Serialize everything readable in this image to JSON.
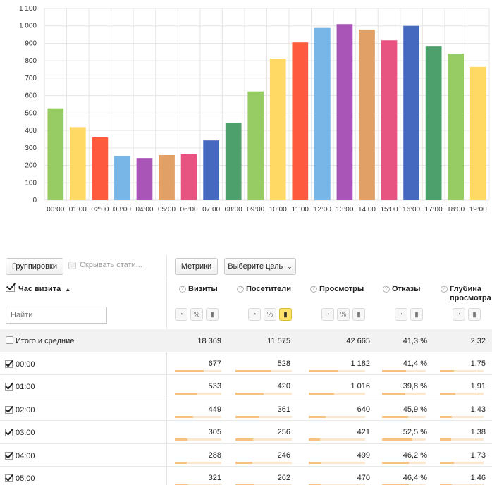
{
  "chart_data": {
    "type": "bar",
    "categories": [
      "00:00",
      "01:00",
      "02:00",
      "03:00",
      "04:00",
      "05:00",
      "06:00",
      "07:00",
      "08:00",
      "09:00",
      "10:00",
      "11:00",
      "12:00",
      "13:00",
      "14:00",
      "15:00",
      "16:00",
      "17:00",
      "18:00",
      "19:00"
    ],
    "values": [
      527,
      419,
      360,
      253,
      242,
      259,
      265,
      343,
      444,
      624,
      813,
      905,
      988,
      1010,
      979,
      917,
      1000,
      885,
      841,
      765
    ],
    "colors": [
      "#97cc64",
      "#ffd963",
      "#fd5a3e",
      "#77b6e7",
      "#a955b8",
      "#e0a066",
      "#e75482",
      "#4469bf",
      "#4da06b",
      "#97cc64",
      "#ffd963",
      "#fd5a3e",
      "#77b6e7",
      "#a955b8",
      "#e0a066",
      "#e75482",
      "#4469bf",
      "#4da06b",
      "#97cc64",
      "#ffd963"
    ],
    "yticks": [
      "0",
      "100",
      "200",
      "300",
      "400",
      "500",
      "600",
      "700",
      "800",
      "900",
      "1 000",
      "1 100"
    ],
    "ylim": [
      0,
      1100
    ],
    "grid": true
  },
  "toolbar": {
    "groupings_label": "Группировки",
    "hide_stats_label": "Скрывать стати...",
    "metrics_label": "Метрики",
    "goal_label": "Выберите цель"
  },
  "header": {
    "dimension_label": "Час визита",
    "sort_arrow": "▲",
    "search_placeholder": "Найти",
    "columns": [
      {
        "label": "Визиты"
      },
      {
        "label": "Посетители"
      },
      {
        "label": "Просмотры"
      },
      {
        "label": "Отказы"
      },
      {
        "label": "Глубина просмотра"
      }
    ]
  },
  "totals": {
    "label": "Итого и средние",
    "values": [
      "18 369",
      "11 575",
      "42 665",
      "41,3 %",
      "2,32"
    ]
  },
  "rows": [
    {
      "label": "00:00",
      "values": [
        "677",
        "528",
        "1 182",
        "41,4 %",
        "1,75"
      ],
      "fractions": [
        0.62,
        0.62,
        0.52,
        0.55,
        0.32
      ]
    },
    {
      "label": "01:00",
      "values": [
        "533",
        "420",
        "1 016",
        "39,8 %",
        "1,91"
      ],
      "fractions": [
        0.48,
        0.5,
        0.45,
        0.53,
        0.35
      ]
    },
    {
      "label": "02:00",
      "values": [
        "449",
        "361",
        "640",
        "45,9 %",
        "1,43"
      ],
      "fractions": [
        0.4,
        0.43,
        0.3,
        0.6,
        0.27
      ]
    },
    {
      "label": "03:00",
      "values": [
        "305",
        "256",
        "421",
        "52,5 %",
        "1,38"
      ],
      "fractions": [
        0.28,
        0.31,
        0.2,
        0.69,
        0.26
      ]
    },
    {
      "label": "04:00",
      "values": [
        "288",
        "246",
        "499",
        "46,2 %",
        "1,73"
      ],
      "fractions": [
        0.26,
        0.3,
        0.23,
        0.61,
        0.32
      ]
    },
    {
      "label": "05:00",
      "values": [
        "321",
        "262",
        "470",
        "46,4 %",
        "1,46"
      ],
      "fractions": [
        0.29,
        0.32,
        0.21,
        0.61,
        0.28
      ]
    }
  ]
}
